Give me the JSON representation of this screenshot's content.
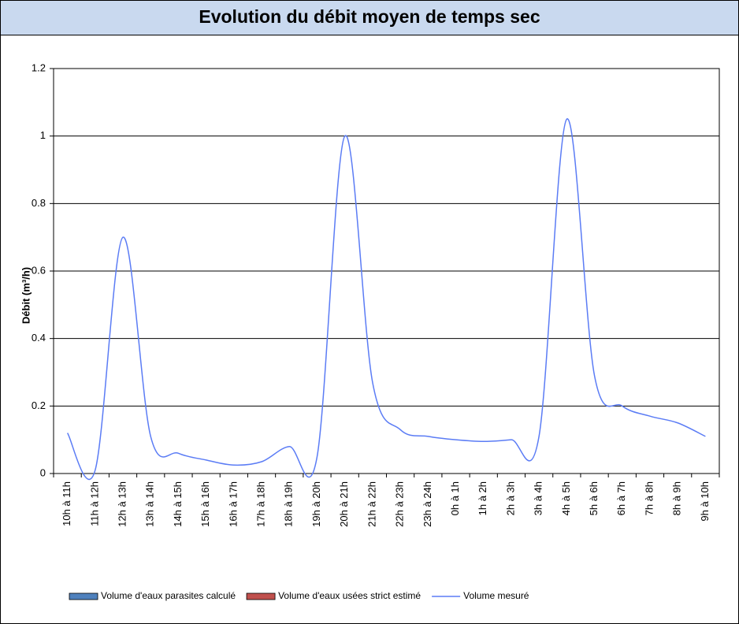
{
  "chart_data": {
    "type": "line",
    "title": "Evolution du débit moyen de temps sec",
    "y_label": "Débit (m³/h)",
    "categories": [
      "10h à 11h",
      "11h à 12h",
      "12h à 13h",
      "13h à 14h",
      "14h à 15h",
      "15h à 16h",
      "16h à 17h",
      "17h à 18h",
      "18h à 19h",
      "19h à 20h",
      "20h à 21h",
      "21h à 22h",
      "22h à 23h",
      "23h à 24h",
      "0h à 1h",
      "1h à 2h",
      "2h à 3h",
      "3h à 4h",
      "4h à 5h",
      "5h à 6h",
      "6h à 7h",
      "7h à 8h",
      "8h à 9h",
      "9h à 10h"
    ],
    "series": [
      {
        "name": "Volume d'eaux parasites calculé",
        "color": "#4f81bd",
        "kind": "bar"
      },
      {
        "name": "Volume d'eaux usées strict estimé",
        "color": "#c0504d",
        "kind": "bar"
      },
      {
        "name": "Volume mesuré",
        "color": "#5b7cf5",
        "kind": "line",
        "values": [
          0.12,
          0.01,
          0.7,
          0.11,
          0.06,
          0.04,
          0.025,
          0.035,
          0.08,
          0.05,
          1.0,
          0.27,
          0.13,
          0.11,
          0.1,
          0.095,
          0.1,
          0.11,
          1.05,
          0.29,
          0.2,
          0.17,
          0.15,
          0.11
        ]
      }
    ],
    "ylim": [
      0,
      1.2
    ],
    "yticks": [
      0,
      0.2,
      0.4,
      0.6,
      0.8,
      1,
      1.2
    ],
    "grid": true
  }
}
